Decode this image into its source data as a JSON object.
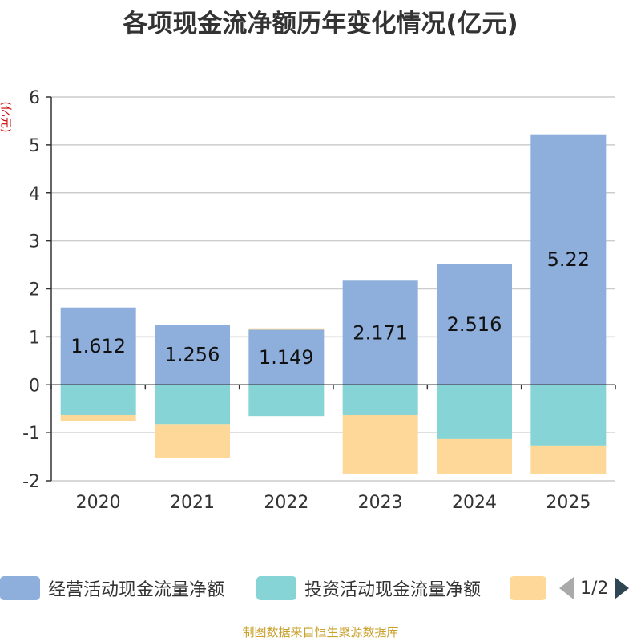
{
  "chart_data": {
    "type": "bar",
    "stacked": true,
    "title": "各项现金流净额历年变化情况(亿元)",
    "ylabel": "(亿元)",
    "ylim": [
      -2,
      6
    ],
    "yticks": [
      6,
      5,
      4,
      3,
      2,
      1,
      0,
      -1,
      -2
    ],
    "categories": [
      "2020",
      "2021",
      "2022",
      "2023",
      "2024",
      "2025"
    ],
    "series": [
      {
        "name": "经营活动现金流量净额",
        "color": "#8eaedb",
        "values": [
          1.612,
          1.256,
          1.149,
          2.171,
          2.516,
          5.22
        ],
        "labels": [
          "1.612",
          "1.256",
          "1.149",
          "2.171",
          "2.516",
          "5.22"
        ]
      },
      {
        "name": "投资活动现金流量净额",
        "color": "#86d4d6",
        "values": [
          -0.63,
          -0.82,
          -0.65,
          -0.63,
          -1.13,
          -1.28
        ]
      },
      {
        "name": "",
        "color": "#fdd898",
        "values": [
          -0.12,
          -0.71,
          0.03,
          -1.22,
          -0.72,
          -0.58
        ]
      }
    ],
    "legend": {
      "position": "bottom",
      "page": "1/2"
    }
  },
  "footer": "制图数据来自恒生聚源数据库"
}
